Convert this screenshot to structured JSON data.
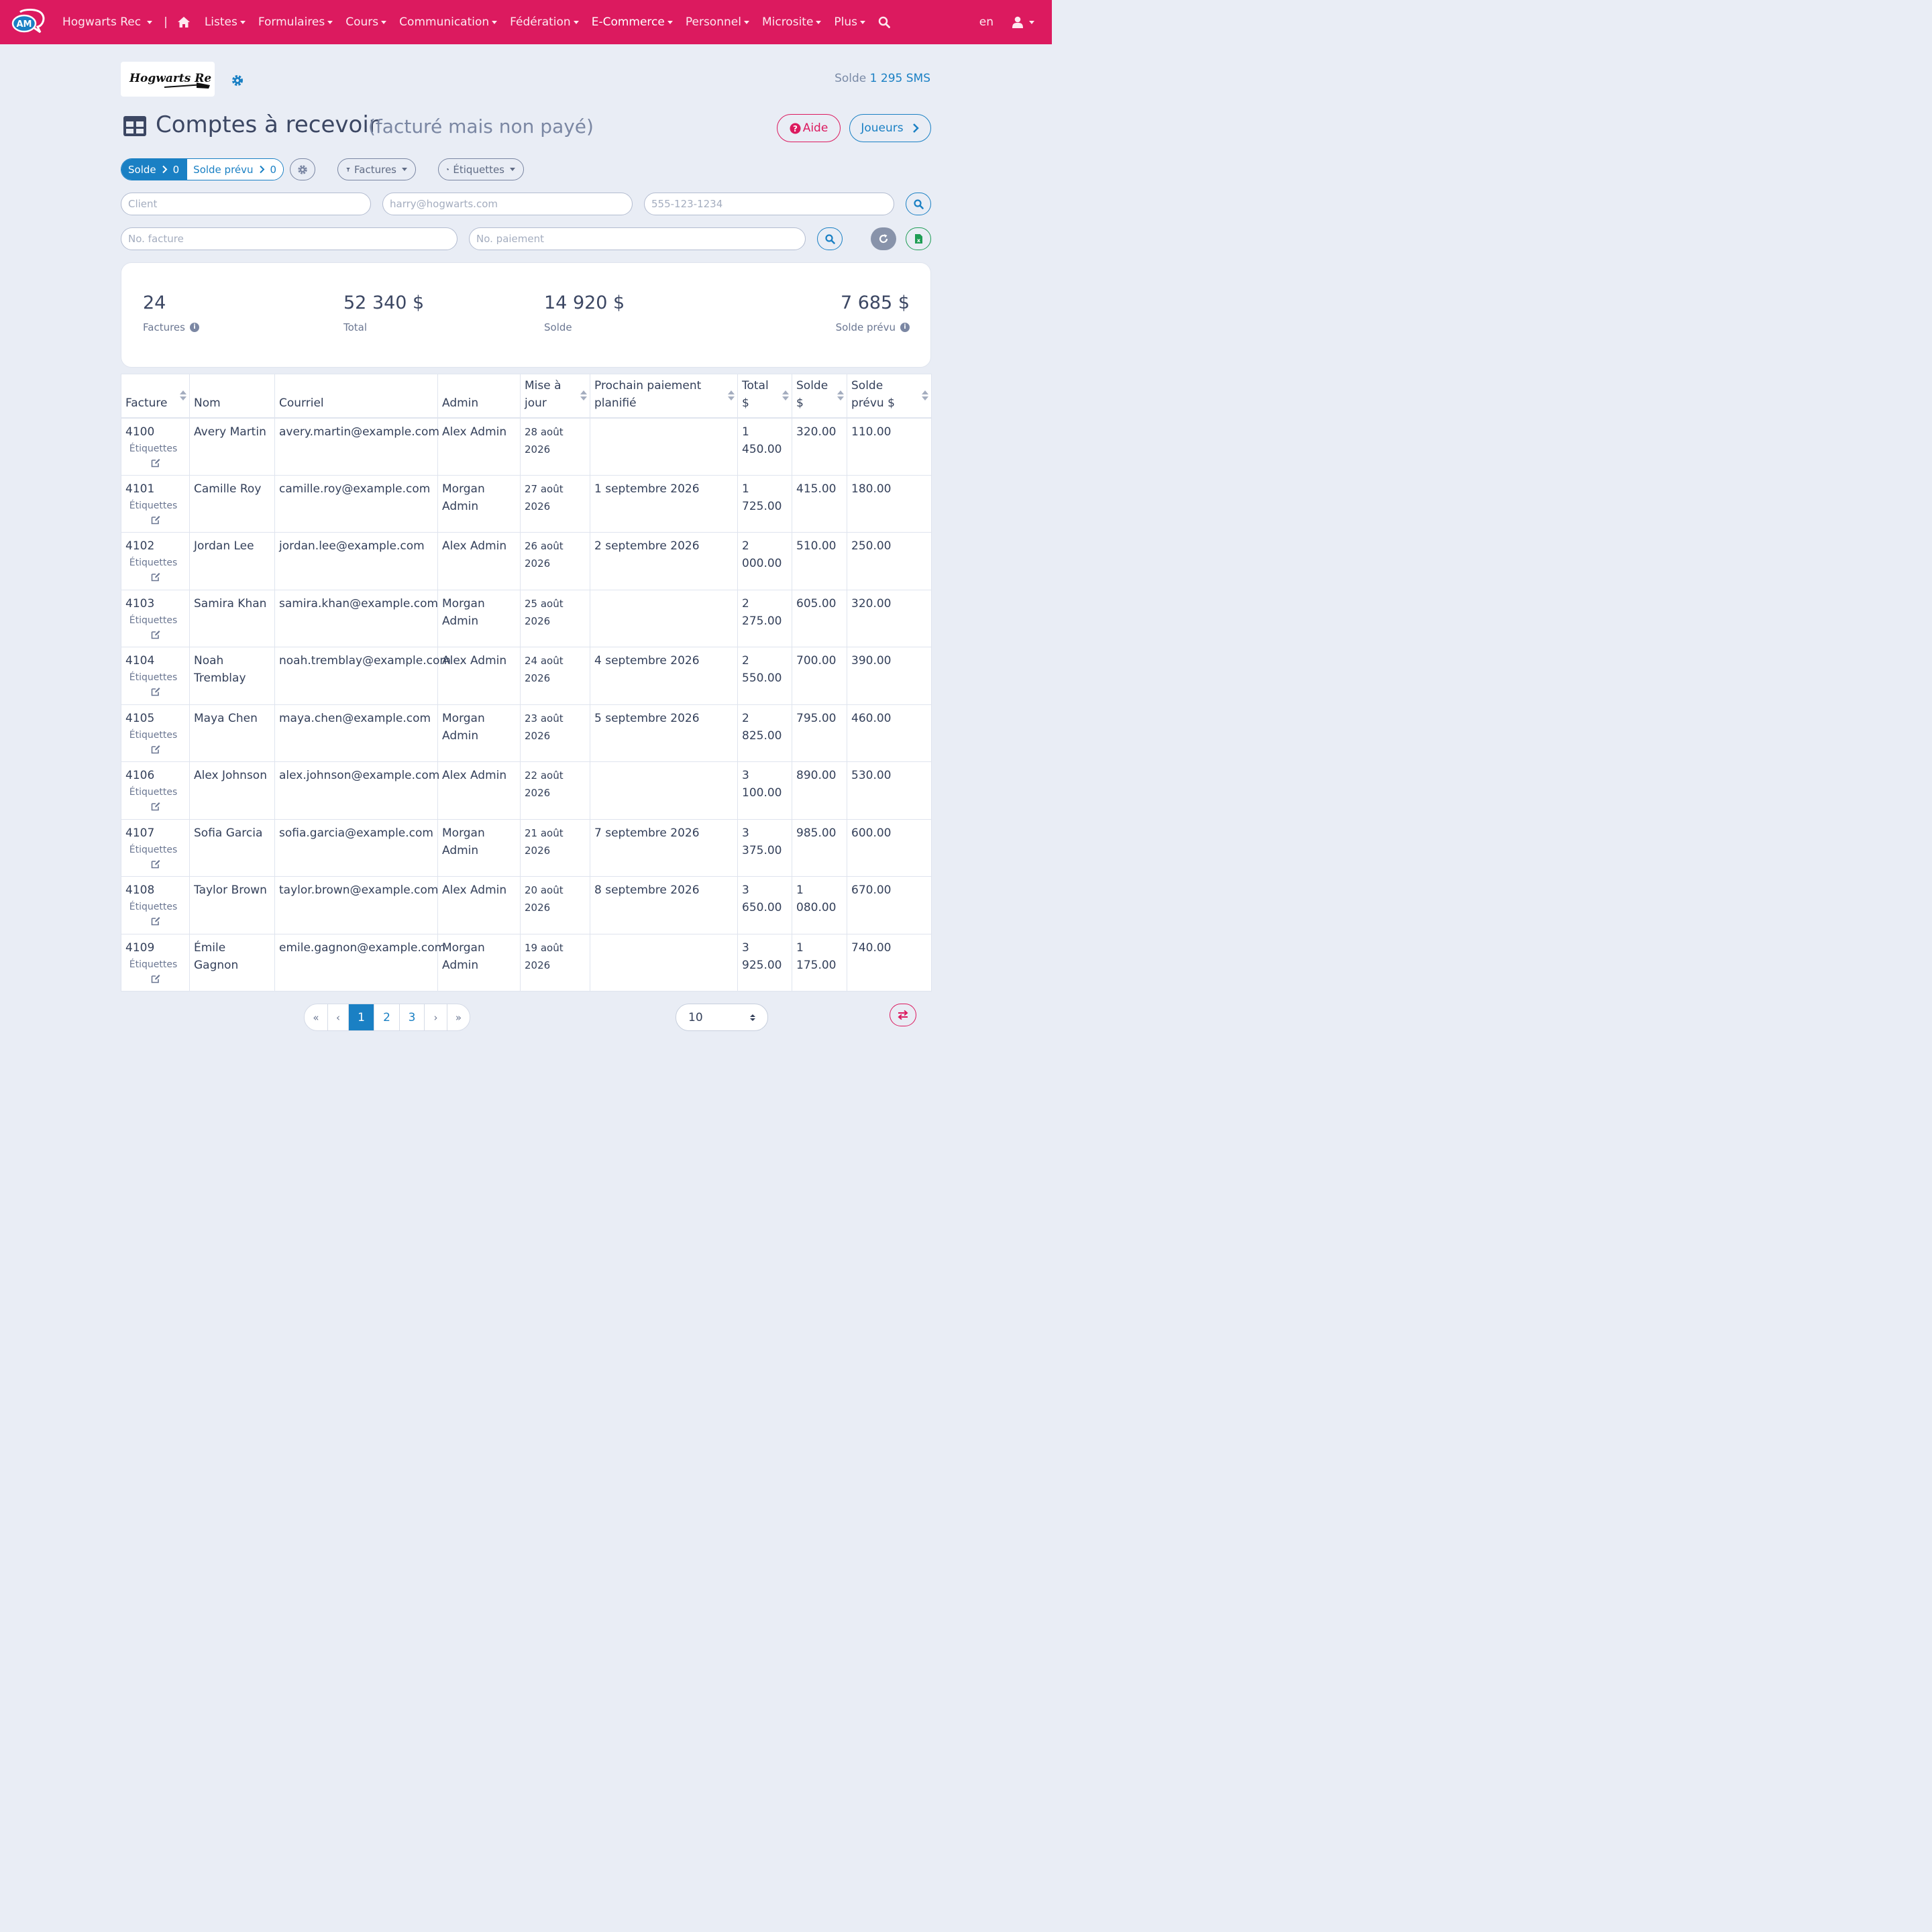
{
  "colors": {
    "brand": "#dc1a5f",
    "accent": "#1a80c4",
    "success": "#1f9d55"
  },
  "topnav": {
    "logo_text": "AM",
    "org": "Hogwarts Rec",
    "separator": "|",
    "items": [
      {
        "label": "Listes"
      },
      {
        "label": "Formulaires"
      },
      {
        "label": "Cours"
      },
      {
        "label": "Communication"
      },
      {
        "label": "Fédération"
      },
      {
        "label": "E-Commerce"
      },
      {
        "label": "Personnel"
      },
      {
        "label": "Microsite"
      },
      {
        "label": "Plus"
      }
    ],
    "lang": "en"
  },
  "header": {
    "brand_logo_text": "Hogwarts Rec",
    "sms_label": "Solde",
    "sms_value": "1 295 SMS",
    "title": "Comptes à recevoir",
    "subtitle": "(facturé mais non payé)",
    "help_label": "Aide",
    "players_label": "Joueurs"
  },
  "filters": {
    "solde_label": "Solde",
    "solde_count": "0",
    "solde_prevu_label": "Solde prévu",
    "solde_prevu_count": "0",
    "invoices_dropdown": "Factures",
    "tags_dropdown": "Étiquettes",
    "client_placeholder": "Client",
    "email_placeholder": "harry@hogwarts.com",
    "phone_placeholder": "555-123-1234",
    "invoice_placeholder": "No. facture",
    "payment_placeholder": "No. paiement"
  },
  "stats": {
    "count": "24",
    "count_label": "Factures",
    "total": "52 340 $",
    "total_label": "Total",
    "balance": "14 920 $",
    "balance_label": "Solde",
    "forecast": "7 685 $",
    "forecast_label": "Solde prévu"
  },
  "table": {
    "headers": {
      "invoice": "Facture",
      "name": "Nom",
      "email": "Courriel",
      "admin": "Admin",
      "updated": "Mise à jour",
      "next_payment": "Prochain paiement planifié",
      "total": "Total $",
      "balance": "Solde $",
      "forecast": "Solde prévu $"
    },
    "tags_label": "Étiquettes",
    "rows": [
      {
        "invoice": "4100",
        "name": "Avery Martin",
        "email": "avery.martin@example.com",
        "admin": "Alex Admin",
        "updated": "28 août 2026",
        "next_payment": "",
        "total": "1 450.00",
        "balance": "320.00",
        "forecast": "110.00"
      },
      {
        "invoice": "4101",
        "name": "Camille Roy",
        "email": "camille.roy@example.com",
        "admin": "Morgan Admin",
        "updated": "27 août 2026",
        "next_payment": "1 septembre 2026",
        "total": "1 725.00",
        "balance": "415.00",
        "forecast": "180.00"
      },
      {
        "invoice": "4102",
        "name": "Jordan Lee",
        "email": "jordan.lee@example.com",
        "admin": "Alex Admin",
        "updated": "26 août 2026",
        "next_payment": "2 septembre 2026",
        "total": "2 000.00",
        "balance": "510.00",
        "forecast": "250.00"
      },
      {
        "invoice": "4103",
        "name": "Samira Khan",
        "email": "samira.khan@example.com",
        "admin": "Morgan Admin",
        "updated": "25 août 2026",
        "next_payment": "",
        "total": "2 275.00",
        "balance": "605.00",
        "forecast": "320.00"
      },
      {
        "invoice": "4104",
        "name": "Noah Tremblay",
        "email": "noah.tremblay@example.com",
        "admin": "Alex Admin",
        "updated": "24 août 2026",
        "next_payment": "4 septembre 2026",
        "total": "2 550.00",
        "balance": "700.00",
        "forecast": "390.00"
      },
      {
        "invoice": "4105",
        "name": "Maya Chen",
        "email": "maya.chen@example.com",
        "admin": "Morgan Admin",
        "updated": "23 août 2026",
        "next_payment": "5 septembre 2026",
        "total": "2 825.00",
        "balance": "795.00",
        "forecast": "460.00"
      },
      {
        "invoice": "4106",
        "name": "Alex Johnson",
        "email": "alex.johnson@example.com",
        "admin": "Alex Admin",
        "updated": "22 août 2026",
        "next_payment": "",
        "total": "3 100.00",
        "balance": "890.00",
        "forecast": "530.00"
      },
      {
        "invoice": "4107",
        "name": "Sofia Garcia",
        "email": "sofia.garcia@example.com",
        "admin": "Morgan Admin",
        "updated": "21 août 2026",
        "next_payment": "7 septembre 2026",
        "total": "3 375.00",
        "balance": "985.00",
        "forecast": "600.00"
      },
      {
        "invoice": "4108",
        "name": "Taylor Brown",
        "email": "taylor.brown@example.com",
        "admin": "Alex Admin",
        "updated": "20 août 2026",
        "next_payment": "8 septembre 2026",
        "total": "3 650.00",
        "balance": "1 080.00",
        "forecast": "670.00"
      },
      {
        "invoice": "4109",
        "name": "Émile Gagnon",
        "email": "emile.gagnon@example.com",
        "admin": "Morgan Admin",
        "updated": "19 août 2026",
        "next_payment": "",
        "total": "3 925.00",
        "balance": "1 175.00",
        "forecast": "740.00"
      }
    ]
  },
  "pagination": {
    "first": "«",
    "prev": "‹",
    "pages": [
      "1",
      "2",
      "3"
    ],
    "current": "1",
    "next": "›",
    "last": "»",
    "per_page": "10"
  }
}
